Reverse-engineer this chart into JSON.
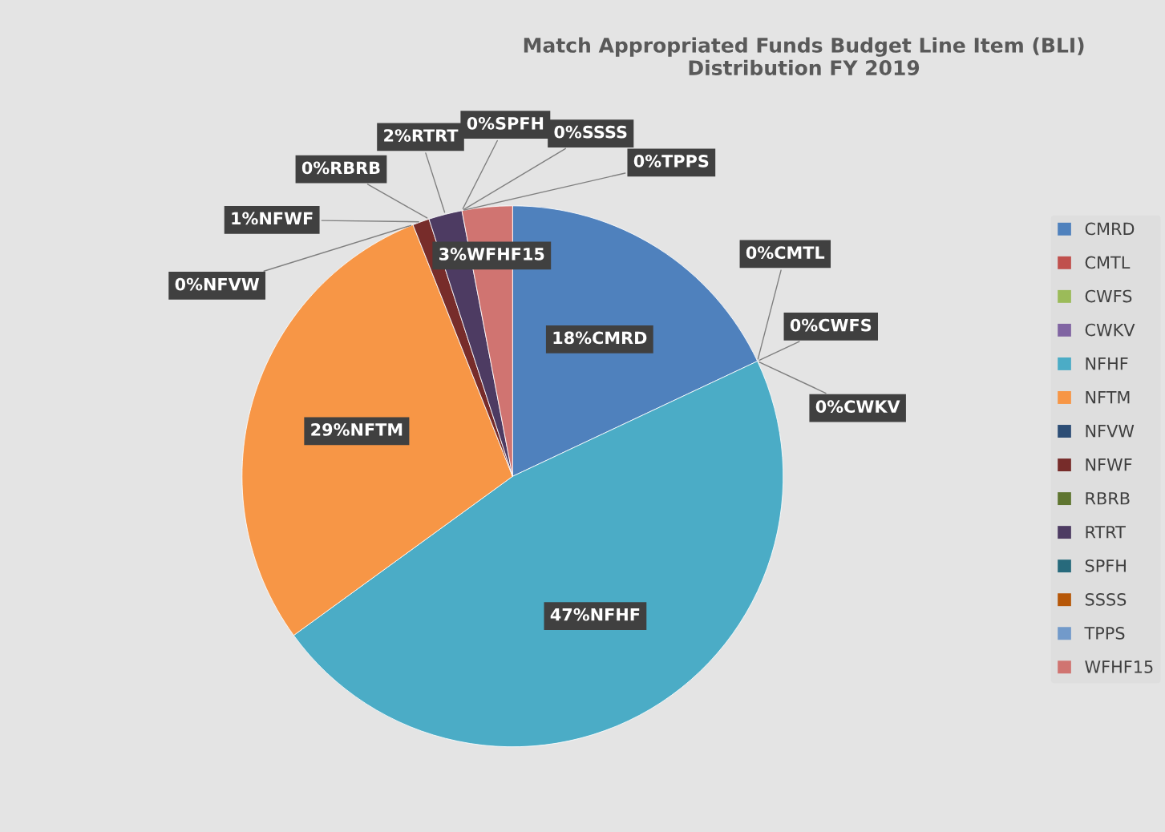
{
  "chart_data": {
    "type": "pie",
    "title": "Match Appropriated Funds Budget Line Item (BLI)\nDistribution FY 2019",
    "categories": [
      "CMRD",
      "CMTL",
      "CWFS",
      "CWKV",
      "NFHF",
      "NFTM",
      "NFVW",
      "NFWF",
      "RBRB",
      "RTRT",
      "SPFH",
      "SSSS",
      "TPPS",
      "WFHF15"
    ],
    "values": [
      18,
      0,
      0,
      0,
      47,
      29,
      0,
      1,
      0,
      2,
      0,
      0,
      0,
      3
    ],
    "colors": [
      "#4f81bd",
      "#c0504d",
      "#9bbb59",
      "#8064a2",
      "#4bacc6",
      "#f79646",
      "#2c4d75",
      "#772c2a",
      "#5f7530",
      "#4d3b62",
      "#276a7c",
      "#b65708",
      "#729aca",
      "#d07471"
    ],
    "value_labels": [
      "18%CMRD",
      "0%CMTL",
      "0%CWFS",
      "0%CWKV",
      "47%NFHF",
      "29%NFTM",
      "0%NFVW",
      "1%NFWF",
      "0%RBRB",
      "2%RTRT",
      "0%SPFH",
      "0%SSSS",
      "0%TPPS",
      "3%WFHF15"
    ],
    "legend": "right"
  }
}
